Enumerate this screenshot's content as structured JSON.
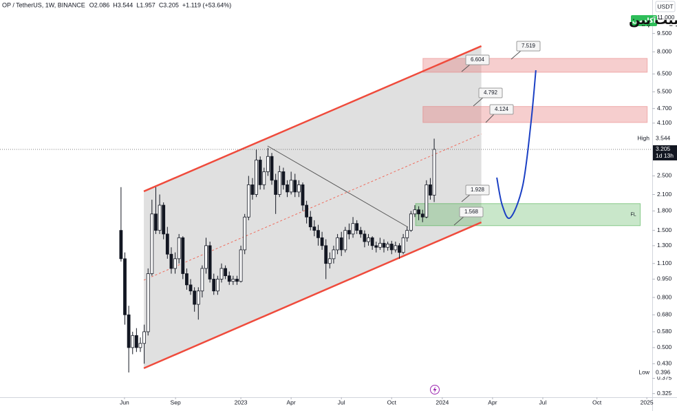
{
  "chart_data": {
    "type": "candlestick",
    "header": {
      "symbol": "OP / TetherUS, 1W, BINANCE",
      "ohlc": [
        "O2.086",
        "H3.544",
        "L1.957",
        "C3.205",
        "+1.119 (+53.64%)"
      ]
    },
    "brand": {
      "name": "بیت پین",
      "badge": "آکادمی"
    },
    "log_scale": true,
    "xlim": [
      -31.3,
      137.4
    ],
    "ylim": [
      0.314,
      13.0
    ],
    "xticks": [
      {
        "value": 0.9,
        "label": "Jun"
      },
      {
        "value": 14.1,
        "label": "Sep"
      },
      {
        "value": 31,
        "label": "2023"
      },
      {
        "value": 44,
        "label": "Apr"
      },
      {
        "value": 57,
        "label": "Jul"
      },
      {
        "value": 70,
        "label": "Oct"
      },
      {
        "value": 83.1,
        "label": "2024"
      },
      {
        "value": 96.1,
        "label": "Apr"
      },
      {
        "value": 109.1,
        "label": "Jul"
      },
      {
        "value": 123.1,
        "label": "Oct"
      },
      {
        "value": 136,
        "label": "2025"
      }
    ],
    "yticks": [
      {
        "value": 11,
        "label": "11.000"
      },
      {
        "value": 9.5,
        "label": "9.500"
      },
      {
        "value": 8,
        "label": "8.000"
      },
      {
        "value": 6.5,
        "label": "6.500"
      },
      {
        "value": 5.5,
        "label": "5.500"
      },
      {
        "value": 4.7,
        "label": "4.700"
      },
      {
        "value": 4.1,
        "label": "4.100"
      },
      {
        "value": 2.5,
        "label": "2.500"
      },
      {
        "value": 2.1,
        "label": "2.100"
      },
      {
        "value": 1.8,
        "label": "1.800"
      },
      {
        "value": 1.5,
        "label": "1.500"
      },
      {
        "value": 1.3,
        "label": "1.300"
      },
      {
        "value": 1.1,
        "label": "1.100"
      },
      {
        "value": 0.95,
        "label": "0.950"
      },
      {
        "value": 0.8,
        "label": "0.800"
      },
      {
        "value": 0.68,
        "label": "0.680"
      },
      {
        "value": 0.58,
        "label": "0.580"
      },
      {
        "value": 0.5,
        "label": "0.500"
      },
      {
        "value": 0.43,
        "label": "0.430"
      },
      0.375,
      0.325
    ],
    "price_scale": {
      "currency": "USDT",
      "high_text": "High",
      "low_text": "Low",
      "countdown": "1d 13h"
    },
    "candles": {
      "up_color": "#ffffff",
      "down_color": "#131722",
      "border_color": "#131722",
      "x": [
        0,
        1,
        2,
        3,
        4,
        5,
        6,
        7,
        8,
        9,
        10,
        11,
        12,
        13,
        14,
        15,
        16,
        17,
        18,
        19,
        20,
        21,
        22,
        23,
        24,
        25,
        26,
        27,
        28,
        29,
        30,
        31,
        32,
        33,
        34,
        35,
        36,
        37,
        38,
        39,
        40,
        41,
        42,
        43,
        44,
        45,
        46,
        47,
        48,
        49,
        50,
        51,
        52,
        53,
        54,
        55,
        56,
        57,
        58,
        59,
        60,
        61,
        62,
        63,
        64,
        65,
        66,
        67,
        68,
        69,
        70,
        71,
        72,
        73,
        74,
        75,
        76,
        77,
        78,
        79,
        80,
        81
      ],
      "open": [
        1.5,
        1.15,
        0.68,
        0.5,
        0.56,
        0.5,
        0.52,
        0.58,
        1.0,
        1.75,
        1.5,
        1.9,
        1.45,
        1.2,
        1.05,
        1.15,
        1.4,
        1.0,
        0.9,
        0.85,
        0.75,
        0.85,
        1.05,
        1.3,
        0.95,
        0.85,
        0.95,
        1.05,
        0.98,
        0.93,
        0.95,
        0.93,
        1.25,
        1.7,
        2.3,
        2.1,
        2.9,
        2.3,
        2.6,
        3.0,
        2.4,
        2.1,
        2.6,
        2.3,
        2.15,
        2.4,
        2.15,
        2.3,
        1.9,
        1.7,
        1.55,
        1.5,
        1.4,
        1.3,
        1.1,
        1.15,
        1.25,
        1.4,
        1.25,
        1.5,
        1.45,
        1.6,
        1.5,
        1.45,
        1.35,
        1.4,
        1.3,
        1.28,
        1.33,
        1.28,
        1.32,
        1.25,
        1.3,
        1.22,
        1.4,
        1.5,
        1.75,
        1.82,
        1.75,
        1.7,
        2.3,
        2.086
      ],
      "high": [
        2.25,
        1.22,
        0.74,
        0.58,
        0.6,
        0.55,
        0.62,
        1.05,
        2.0,
        2.25,
        2.1,
        1.95,
        1.55,
        1.28,
        1.22,
        1.45,
        1.42,
        1.05,
        0.95,
        0.88,
        0.88,
        1.08,
        1.4,
        1.35,
        1.0,
        0.98,
        1.1,
        1.08,
        1.02,
        0.98,
        0.98,
        1.3,
        1.75,
        2.5,
        2.45,
        3.2,
        3.0,
        2.7,
        3.25,
        3.1,
        2.55,
        2.75,
        2.7,
        2.4,
        2.6,
        2.55,
        2.4,
        2.35,
        1.98,
        1.8,
        1.65,
        1.58,
        1.48,
        1.38,
        1.22,
        1.3,
        1.45,
        1.48,
        1.55,
        1.6,
        1.7,
        1.65,
        1.55,
        1.5,
        1.45,
        1.42,
        1.35,
        1.4,
        1.38,
        1.35,
        1.36,
        1.35,
        1.33,
        1.45,
        1.55,
        1.8,
        1.9,
        1.88,
        1.82,
        2.4,
        2.45,
        3.544
      ],
      "low": [
        1.12,
        0.62,
        0.396,
        0.47,
        0.48,
        0.48,
        0.43,
        0.56,
        0.98,
        1.45,
        1.45,
        1.38,
        1.15,
        1.0,
        1.0,
        1.1,
        0.95,
        0.86,
        0.82,
        0.7,
        0.65,
        0.8,
        1.0,
        0.92,
        0.82,
        0.82,
        0.92,
        0.95,
        0.9,
        0.9,
        0.9,
        0.92,
        1.2,
        1.65,
        2.0,
        2.05,
        2.2,
        2.2,
        2.5,
        2.3,
        1.75,
        2.05,
        2.2,
        2.05,
        2.1,
        2.05,
        2.05,
        1.8,
        1.6,
        1.5,
        1.42,
        1.3,
        1.25,
        0.95,
        1.05,
        1.1,
        1.2,
        1.18,
        1.22,
        1.38,
        1.4,
        1.45,
        1.4,
        1.28,
        1.3,
        1.25,
        1.22,
        1.25,
        1.22,
        1.24,
        1.2,
        1.22,
        1.15,
        1.2,
        1.35,
        1.48,
        1.7,
        1.65,
        1.62,
        1.68,
        2.0,
        1.957
      ],
      "close": [
        1.15,
        0.68,
        0.5,
        0.56,
        0.5,
        0.52,
        0.58,
        1.0,
        1.75,
        1.5,
        1.9,
        1.45,
        1.2,
        1.05,
        1.15,
        1.4,
        1.0,
        0.9,
        0.85,
        0.75,
        0.85,
        1.05,
        1.3,
        0.95,
        0.85,
        0.95,
        1.05,
        0.98,
        0.93,
        0.95,
        0.93,
        1.25,
        1.7,
        2.3,
        2.1,
        2.9,
        2.3,
        2.6,
        3.0,
        2.4,
        2.1,
        2.6,
        2.3,
        2.15,
        2.4,
        2.15,
        2.3,
        1.9,
        1.7,
        1.55,
        1.5,
        1.4,
        1.3,
        1.1,
        1.15,
        1.25,
        1.4,
        1.25,
        1.5,
        1.45,
        1.6,
        1.5,
        1.45,
        1.35,
        1.4,
        1.3,
        1.28,
        1.33,
        1.28,
        1.32,
        1.25,
        1.3,
        1.22,
        1.4,
        1.5,
        1.75,
        1.82,
        1.75,
        1.7,
        2.3,
        2.086,
        3.205
      ]
    },
    "channel_fill": "rgba(160,160,160,0.32)",
    "lines": [
      {
        "x": [
          5.9,
          93.2
        ],
        "y": [
          2.163,
          8.44
        ],
        "color": "#ef4b3c",
        "style": "solid"
      },
      {
        "x": [
          5.9,
          93.2
        ],
        "y": [
          0.412,
          1.618
        ],
        "color": "#ef4b3c",
        "style": "solid"
      },
      {
        "x": [
          5.9,
          93.2
        ],
        "y": [
          0.941,
          3.7
        ],
        "color": "#ef6b5c",
        "style": "dashed"
      },
      {
        "x": [
          37.9,
          74.2
        ],
        "y": [
          3.31,
          1.547
        ],
        "color": "#555555",
        "style": "thin"
      }
    ],
    "zones": [
      {
        "low": 4.124,
        "high": 4.792,
        "x": [
          78.1,
          136.1
        ],
        "color": "rgba(229,115,115,0.35)"
      },
      {
        "low": 6.604,
        "high": 7.519,
        "x": [
          78.1,
          136.1
        ],
        "color": "rgba(229,115,115,0.35)"
      },
      {
        "low": 1.568,
        "high": 1.928,
        "x": [
          76.2,
          134.3
        ],
        "color": "rgba(76,175,80,0.3)",
        "label": "FL"
      }
    ],
    "projection": {
      "color": "#1a3fc4",
      "x": [
        97.2,
        98.6,
        100.7,
        103.9,
        106.0,
        107.3
      ],
      "y": [
        2.46,
        1.9,
        1.69,
        2.28,
        4.07,
        6.73
      ]
    }
  }
}
